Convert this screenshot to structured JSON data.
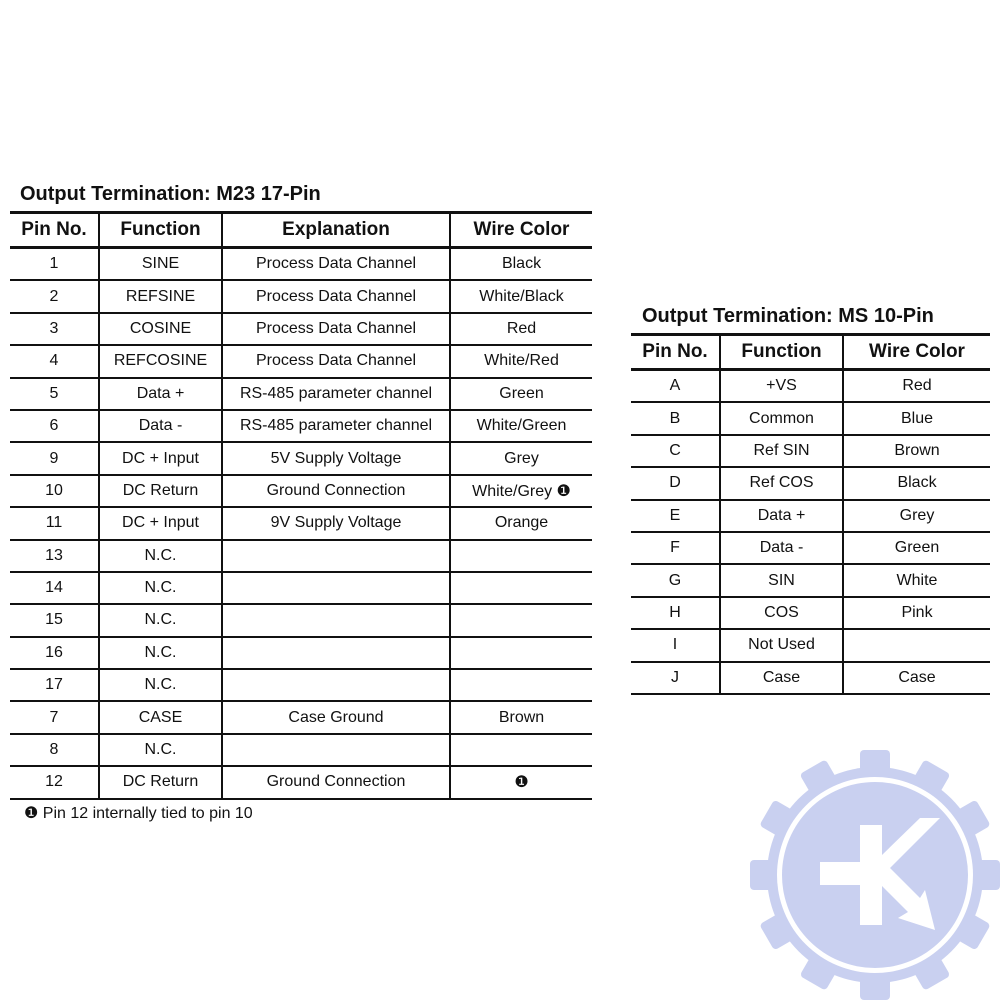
{
  "m23": {
    "title": "Output Termination: M23 17-Pin",
    "headers": [
      "Pin No.",
      "Function",
      "Explanation",
      "Wire Color"
    ],
    "rows": [
      [
        "1",
        "SINE",
        "Process Data Channel",
        "Black"
      ],
      [
        "2",
        "REFSINE",
        "Process Data Channel",
        "White/Black"
      ],
      [
        "3",
        "COSINE",
        "Process Data Channel",
        "Red"
      ],
      [
        "4",
        "REFCOSINE",
        "Process Data Channel",
        "White/Red"
      ],
      [
        "5",
        "Data +",
        "RS-485 parameter channel",
        "Green"
      ],
      [
        "6",
        "Data -",
        "RS-485 parameter channel",
        "White/Green"
      ],
      [
        "9",
        "DC + Input",
        "5V Supply Voltage",
        "Grey"
      ],
      [
        "10",
        "DC Return",
        "Ground Connection",
        "White/Grey ❶"
      ],
      [
        "11",
        "DC + Input",
        "9V Supply Voltage",
        "Orange"
      ],
      [
        "13",
        "N.C.",
        "",
        ""
      ],
      [
        "14",
        "N.C.",
        "",
        ""
      ],
      [
        "15",
        "N.C.",
        "",
        ""
      ],
      [
        "16",
        "N.C.",
        "",
        ""
      ],
      [
        "17",
        "N.C.",
        "",
        ""
      ],
      [
        "7",
        "CASE",
        "Case Ground",
        "Brown"
      ],
      [
        "8",
        "N.C.",
        "",
        ""
      ],
      [
        "12",
        "DC Return",
        "Ground Connection",
        "❶"
      ]
    ],
    "footnote": "❶ Pin 12 internally tied to pin 10"
  },
  "ms10": {
    "title": "Output Termination: MS 10-Pin",
    "headers": [
      "Pin No.",
      "Function",
      "Wire Color"
    ],
    "rows": [
      [
        "A",
        "+VS",
        "Red"
      ],
      [
        "B",
        "Common",
        "Blue"
      ],
      [
        "C",
        "Ref SIN",
        "Brown"
      ],
      [
        "D",
        "Ref COS",
        "Black"
      ],
      [
        "E",
        "Data +",
        "Grey"
      ],
      [
        "F",
        "Data -",
        "Green"
      ],
      [
        "G",
        "SIN",
        "White"
      ],
      [
        "H",
        "COS",
        "Pink"
      ],
      [
        "I",
        "Not Used",
        ""
      ],
      [
        "J",
        "Case",
        "Case"
      ]
    ]
  },
  "watermark": {
    "icon": "gear-k-arrow-logo",
    "color": "#c9d0f0"
  }
}
